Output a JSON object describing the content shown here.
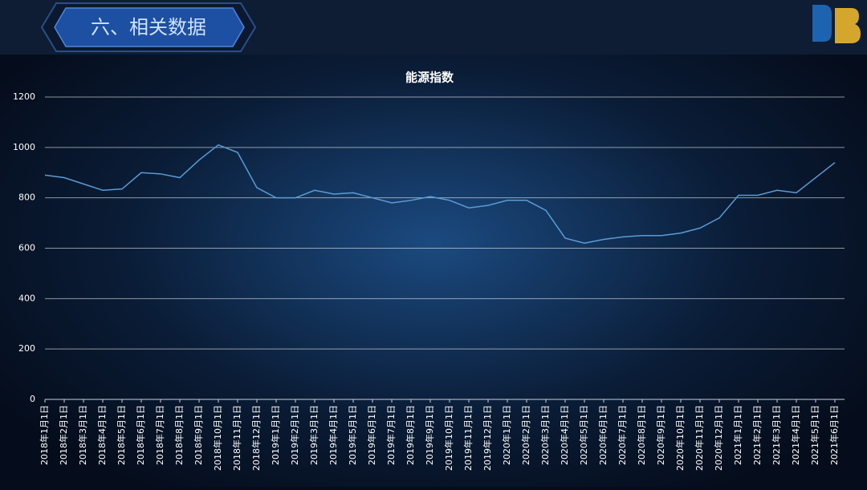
{
  "header": {
    "title": "六、相关数据"
  },
  "chart_data": {
    "type": "line",
    "title": "能源指数",
    "categories": [
      "2018年1月1日",
      "2018年2月1日",
      "2018年3月1日",
      "2018年4月1日",
      "2018年5月1日",
      "2018年6月1日",
      "2018年7月1日",
      "2018年8月1日",
      "2018年9月1日",
      "2018年10月1日",
      "2018年11月1日",
      "2018年12月1日",
      "2019年1月1日",
      "2019年2月1日",
      "2019年3月1日",
      "2019年4月1日",
      "2019年5月1日",
      "2019年6月1日",
      "2019年7月1日",
      "2019年8月1日",
      "2019年9月1日",
      "2019年10月1日",
      "2019年11月1日",
      "2019年12月1日",
      "2020年1月1日",
      "2020年2月1日",
      "2020年3月1日",
      "2020年4月1日",
      "2020年5月1日",
      "2020年6月1日",
      "2020年7月1日",
      "2020年8月1日",
      "2020年9月1日",
      "2020年10月1日",
      "2020年11月1日",
      "2020年12月1日",
      "2021年1月1日",
      "2021年2月1日",
      "2021年3月1日",
      "2021年4月1日",
      "2021年5月1日",
      "2021年6月1日"
    ],
    "values": [
      890,
      880,
      855,
      830,
      835,
      900,
      895,
      880,
      950,
      1010,
      980,
      840,
      800,
      800,
      830,
      815,
      820,
      800,
      780,
      790,
      805,
      790,
      760,
      770,
      790,
      790,
      750,
      640,
      620,
      635,
      645,
      650,
      650,
      660,
      680,
      720,
      810,
      810,
      830,
      820,
      880,
      940
    ],
    "color": "#5b9bd5",
    "ylim": [
      0,
      1200
    ],
    "yticks": [
      0,
      200,
      400,
      600,
      800,
      1000,
      1200
    ],
    "grid": true
  }
}
